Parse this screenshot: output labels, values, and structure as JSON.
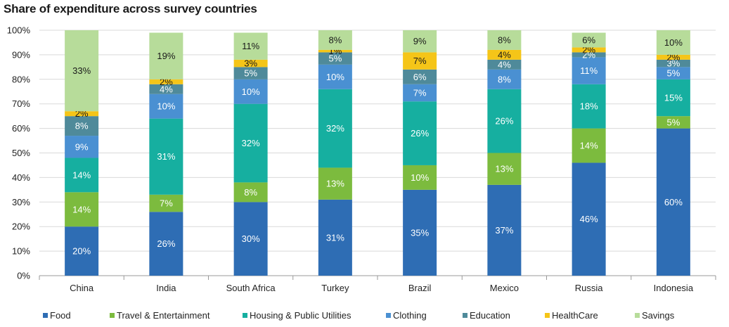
{
  "chart_data": {
    "type": "bar",
    "stacked": true,
    "title": "Share of expenditure across survey countries",
    "categories": [
      "China",
      "India",
      "South Africa",
      "Turkey",
      "Brazil",
      "Mexico",
      "Russia",
      "Indonesia"
    ],
    "ylim": [
      0,
      100
    ],
    "yticks": [
      "0%",
      "10%",
      "20%",
      "30%",
      "40%",
      "50%",
      "60%",
      "70%",
      "80%",
      "90%",
      "100%"
    ],
    "grid": true,
    "legend_position": "bottom",
    "series": [
      {
        "name": "Food",
        "color": "#2e6db4",
        "label_color": "#ffffff",
        "values": [
          20,
          26,
          30,
          31,
          35,
          37,
          46,
          60
        ]
      },
      {
        "name": "Travel & Entertainment",
        "color": "#7cbb3e",
        "label_color": "#ffffff",
        "values": [
          14,
          7,
          8,
          13,
          10,
          13,
          14,
          5
        ]
      },
      {
        "name": "Housing & Public Utilities",
        "color": "#16afa0",
        "label_color": "#ffffff",
        "values": [
          14,
          31,
          32,
          32,
          26,
          26,
          18,
          15
        ]
      },
      {
        "name": "Clothing",
        "color": "#4a90d2",
        "label_color": "#ffffff",
        "values": [
          9,
          10,
          10,
          10,
          7,
          8,
          11,
          5
        ]
      },
      {
        "name": "Education",
        "color": "#4f8a9a",
        "label_color": "#ffffff",
        "values": [
          8,
          4,
          5,
          5,
          6,
          4,
          2,
          3
        ]
      },
      {
        "name": "HealthCare",
        "color": "#f5c518",
        "label_color": "#1a1a1a",
        "values": [
          2,
          2,
          3,
          1,
          7,
          4,
          2,
          2
        ]
      },
      {
        "name": "Savings",
        "color": "#b7dc9a",
        "label_color": "#1a1a1a",
        "values": [
          33,
          19,
          11,
          8,
          9,
          8,
          6,
          10
        ]
      }
    ],
    "grid_color": "#d9d9d9",
    "axis_color": "#999999"
  }
}
